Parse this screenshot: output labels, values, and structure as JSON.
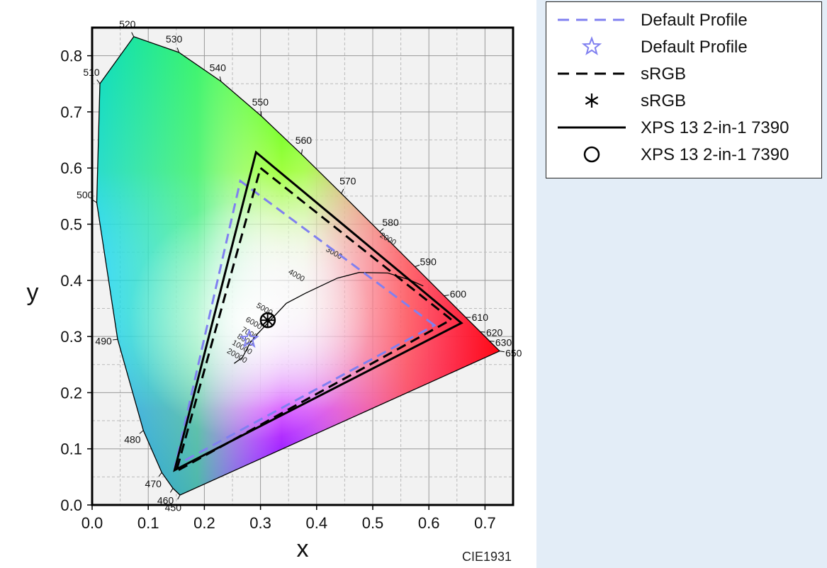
{
  "chart_data": {
    "type": "scatter",
    "title": "",
    "xlabel": "x",
    "ylabel": "y",
    "xlim": [
      0.0,
      0.75
    ],
    "ylim": [
      0.0,
      0.85
    ],
    "xticks": [
      "0.0",
      "0.1",
      "0.2",
      "0.3",
      "0.4",
      "0.5",
      "0.6",
      "0.7"
    ],
    "yticks": [
      "0.0",
      "0.1",
      "0.2",
      "0.3",
      "0.4",
      "0.5",
      "0.6",
      "0.7",
      "0.8"
    ],
    "grid": true,
    "footnote": "CIE1931",
    "spectral_locus": [
      {
        "nm": "450",
        "x": 0.1566,
        "y": 0.0177
      },
      {
        "nm": "460",
        "x": 0.144,
        "y": 0.0297
      },
      {
        "nm": "470",
        "x": 0.1241,
        "y": 0.0578
      },
      {
        "nm": "480",
        "x": 0.0913,
        "y": 0.1327
      },
      {
        "nm": "490",
        "x": 0.0454,
        "y": 0.295
      },
      {
        "nm": "500",
        "x": 0.0082,
        "y": 0.5384
      },
      {
        "nm": "510",
        "x": 0.0139,
        "y": 0.7502
      },
      {
        "nm": "520",
        "x": 0.0743,
        "y": 0.8338
      },
      {
        "nm": "530",
        "x": 0.1547,
        "y": 0.8059
      },
      {
        "nm": "540",
        "x": 0.2296,
        "y": 0.7543
      },
      {
        "nm": "550",
        "x": 0.3016,
        "y": 0.6923
      },
      {
        "nm": "560",
        "x": 0.3731,
        "y": 0.6245
      },
      {
        "nm": "570",
        "x": 0.4441,
        "y": 0.5547
      },
      {
        "nm": "580",
        "x": 0.5125,
        "y": 0.4866
      },
      {
        "nm": "590",
        "x": 0.5752,
        "y": 0.4242
      },
      {
        "nm": "600",
        "x": 0.627,
        "y": 0.3725
      },
      {
        "nm": "610",
        "x": 0.6658,
        "y": 0.334
      },
      {
        "nm": "620",
        "x": 0.6915,
        "y": 0.3083
      },
      {
        "nm": "630",
        "x": 0.7079,
        "y": 0.292
      },
      {
        "nm": "650",
        "x": 0.726,
        "y": 0.274
      }
    ],
    "planckian_locus": {
      "points": [
        [
          0.253,
          0.252
        ],
        [
          0.268,
          0.263
        ],
        [
          0.281,
          0.288
        ],
        [
          0.295,
          0.305
        ],
        [
          0.313,
          0.324
        ],
        [
          0.346,
          0.359
        ],
        [
          0.38,
          0.377
        ],
        [
          0.437,
          0.404
        ],
        [
          0.476,
          0.414
        ],
        [
          0.527,
          0.413
        ],
        [
          0.565,
          0.401
        ],
        [
          0.59,
          0.39
        ]
      ],
      "labels": [
        {
          "t": "20000",
          "x": 0.256,
          "y": 0.262
        },
        {
          "t": "10000",
          "x": 0.265,
          "y": 0.277
        },
        {
          "t": "8000",
          "x": 0.271,
          "y": 0.29
        },
        {
          "t": "7000",
          "x": 0.278,
          "y": 0.302
        },
        {
          "t": "6000",
          "x": 0.286,
          "y": 0.32
        },
        {
          "t": "5000",
          "x": 0.305,
          "y": 0.345
        },
        {
          "t": "4000",
          "x": 0.362,
          "y": 0.405
        },
        {
          "t": "3000",
          "x": 0.429,
          "y": 0.445
        },
        {
          "t": "2000",
          "x": 0.525,
          "y": 0.47
        }
      ]
    },
    "series": [
      {
        "name": "Default Profile",
        "style": "dashed",
        "color": "#8080f0",
        "gamut": [
          [
            0.61,
            0.32
          ],
          [
            0.264,
            0.577
          ],
          [
            0.148,
            0.07
          ]
        ],
        "whitepoint": [
          0.28,
          0.295
        ],
        "marker": "star"
      },
      {
        "name": "sRGB",
        "style": "dashed",
        "color": "#000000",
        "gamut": [
          [
            0.64,
            0.33
          ],
          [
            0.3,
            0.6
          ],
          [
            0.15,
            0.06
          ]
        ],
        "whitepoint": [
          0.3127,
          0.329
        ],
        "marker": "asterisk"
      },
      {
        "name": "XPS 13 2-in-1 7390",
        "style": "solid",
        "color": "#000000",
        "gamut": [
          [
            0.658,
            0.324
          ],
          [
            0.292,
            0.628
          ],
          [
            0.147,
            0.062
          ]
        ],
        "whitepoint": [
          0.313,
          0.329
        ],
        "marker": "circle"
      }
    ]
  },
  "legend": [
    {
      "label": "Default Profile",
      "sym": "dash",
      "color": "#8080f0"
    },
    {
      "label": "Default Profile",
      "sym": "star",
      "color": "#8080f0"
    },
    {
      "label": "sRGB",
      "sym": "dash",
      "color": "#000000"
    },
    {
      "label": "sRGB",
      "sym": "asterisk",
      "color": "#000000"
    },
    {
      "label": "XPS 13 2-in-1 7390",
      "sym": "line",
      "color": "#000000"
    },
    {
      "label": "XPS 13 2-in-1 7390",
      "sym": "circle",
      "color": "#000000"
    }
  ]
}
